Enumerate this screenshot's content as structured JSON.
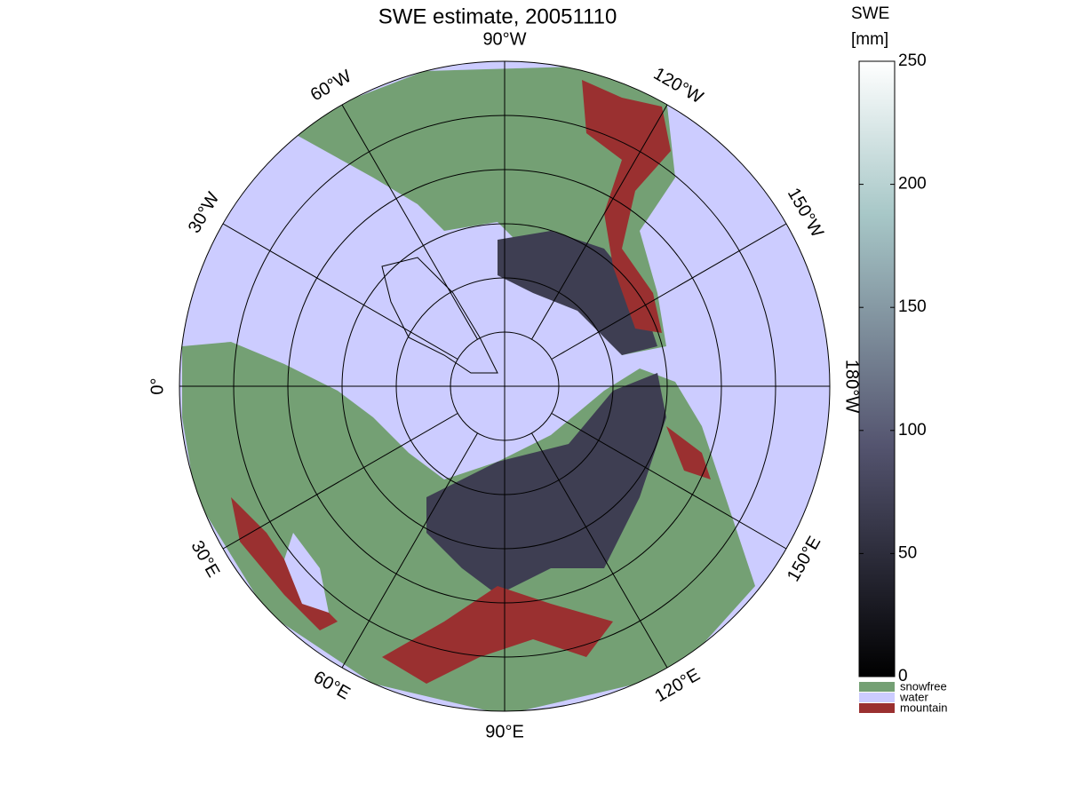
{
  "title": "SWE estimate, 20051110",
  "longitude_labels": [
    "0°",
    "30°E",
    "60°E",
    "90°E",
    "120°E",
    "150°E",
    "180°W",
    "150°W",
    "120°W",
    "90°W",
    "60°W",
    "30°W"
  ],
  "colorbar": {
    "label": [
      "SWE",
      "[mm]"
    ],
    "lim": [
      0,
      250
    ],
    "ticks": [
      0,
      50,
      100,
      150,
      200,
      250
    ]
  },
  "legend": [
    {
      "label": "snowfree",
      "color": "#74a074"
    },
    {
      "label": "water",
      "color": "#ccccff"
    },
    {
      "label": "mountain",
      "color": "#9a3030"
    }
  ]
}
